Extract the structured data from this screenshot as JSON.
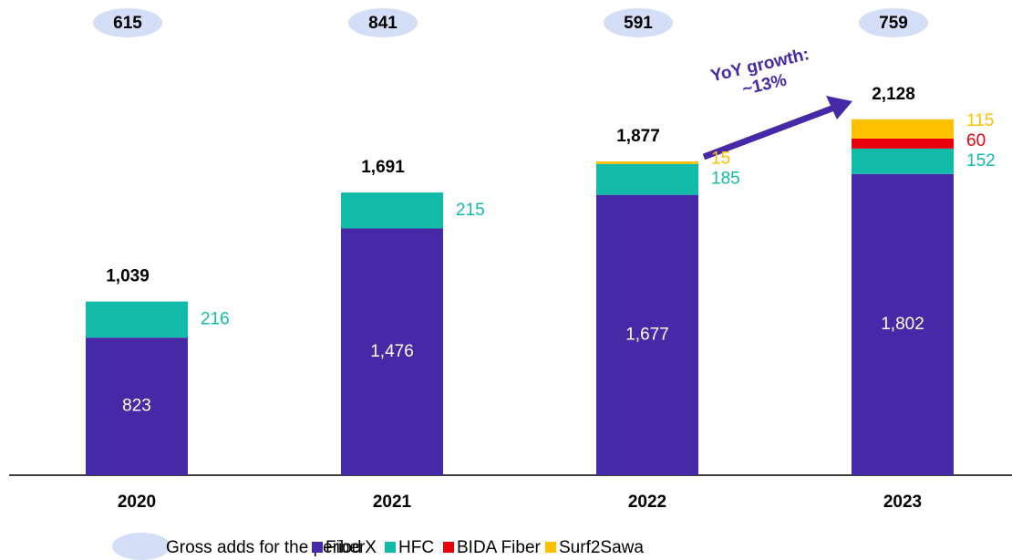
{
  "chart_data": {
    "type": "stacked_bar",
    "categories": [
      "2020",
      "2021",
      "2022",
      "2023"
    ],
    "series": [
      {
        "name": "FiberX",
        "color": "#4629a6",
        "values": [
          823,
          1476,
          1677,
          1802
        ],
        "value_labels": [
          "823",
          "1,476",
          "1,677",
          "1,802"
        ]
      },
      {
        "name": "HFC",
        "color": "#12bba9",
        "values": [
          216,
          215,
          185,
          152
        ]
      },
      {
        "name": "BIDA Fiber",
        "color": "#e8000b",
        "values": [
          null,
          null,
          null,
          60
        ]
      },
      {
        "name": "Surf2Sawa",
        "color": "#ffc000",
        "values": [
          null,
          null,
          15,
          115
        ]
      }
    ],
    "totals": {
      "values": [
        1039,
        1691,
        1877,
        2128
      ],
      "value_labels": [
        "1,039",
        "1,691",
        "1,877",
        "2,128"
      ]
    },
    "gross_adds": {
      "name": "Gross adds for the period",
      "color": "#d4def6",
      "values": [
        615,
        841,
        591,
        759
      ]
    },
    "annotation": [
      "YoY growth:",
      "~13%"
    ]
  }
}
